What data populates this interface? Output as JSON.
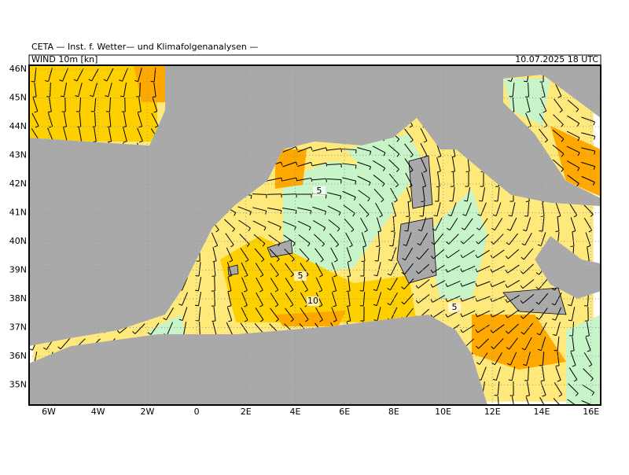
{
  "header": {
    "source": "CETA — Inst. f. Wetter— und Klimafolgenanalysen —",
    "field": "WIND 10m [kn]",
    "time": "10.07.2025 18 UTC"
  },
  "axes": {
    "lat_labels": [
      "46N",
      "45N",
      "44N",
      "43N",
      "42N",
      "41N",
      "40N",
      "39N",
      "38N",
      "37N",
      "36N",
      "35N"
    ],
    "lon_labels": [
      "6W",
      "4W",
      "2W",
      "0",
      "2E",
      "4E",
      "6E",
      "8E",
      "10E",
      "12E",
      "14E",
      "16E"
    ]
  },
  "contour_labels": [
    "5",
    "5",
    "10",
    "5"
  ]
}
